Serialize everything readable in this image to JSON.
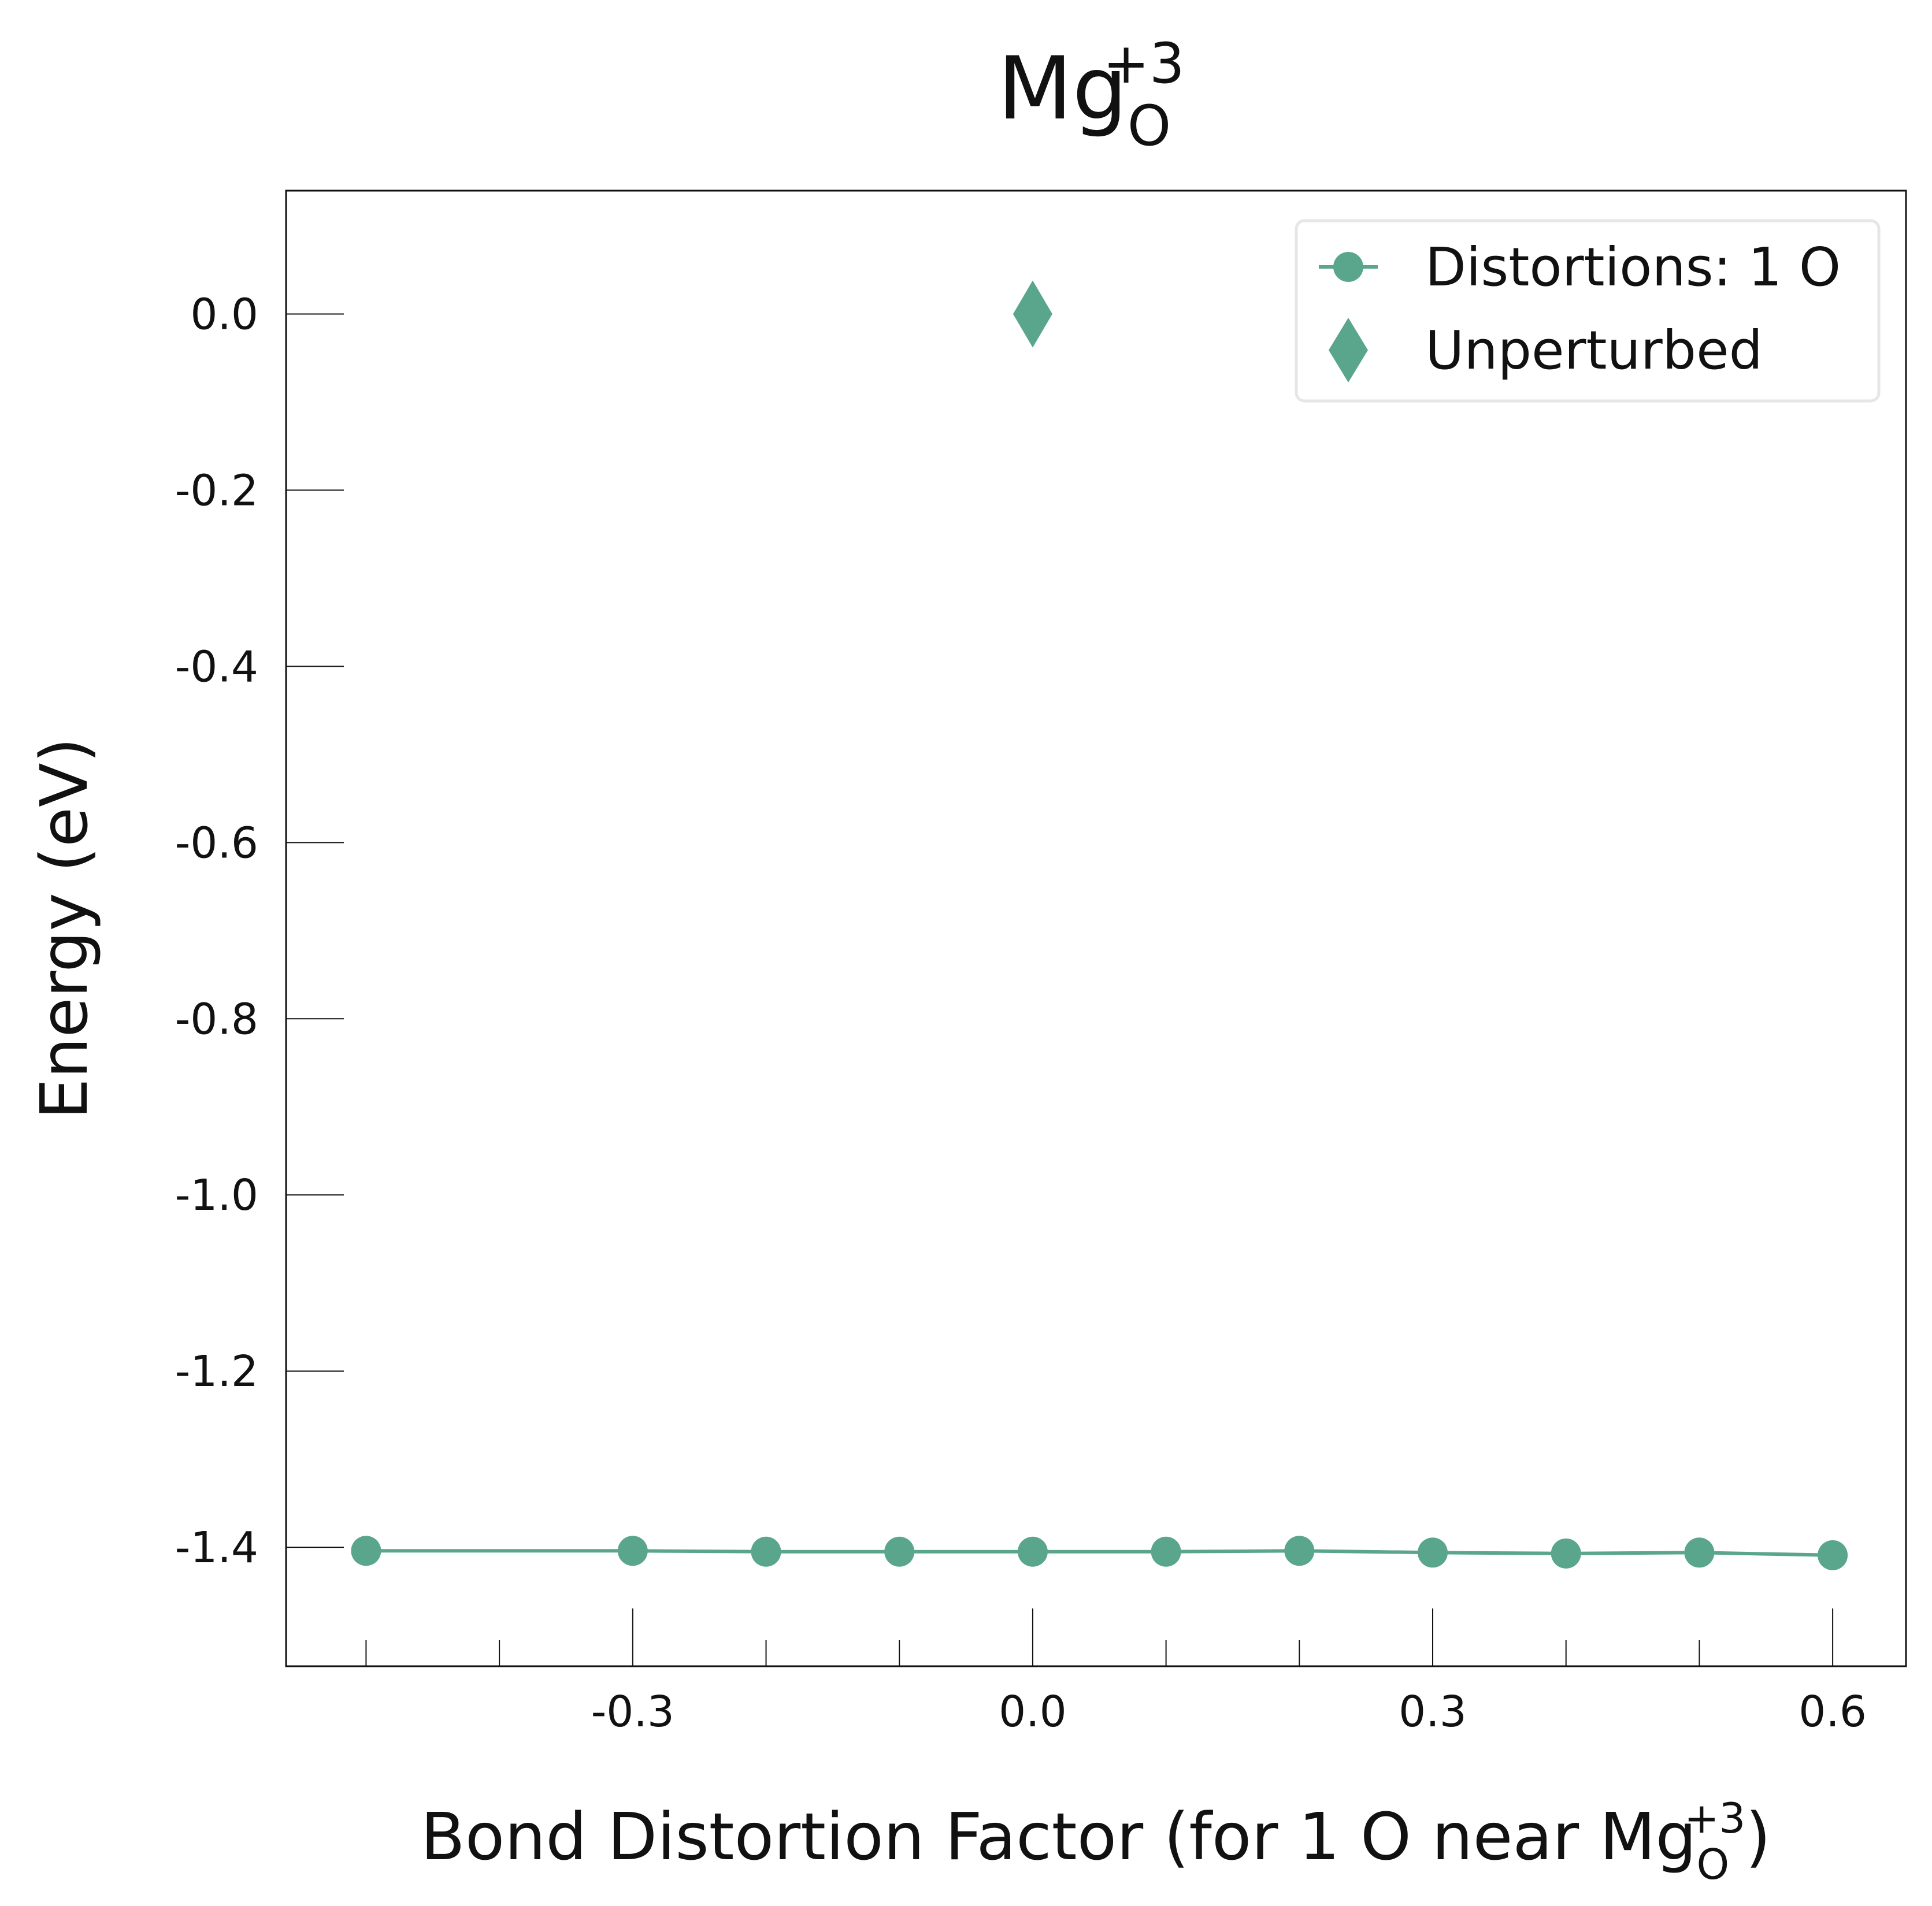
{
  "colors": {
    "series": "#5aa68c",
    "axis": "#111111",
    "legend_border": "#e6e6e6",
    "background": "#ffffff"
  },
  "chart_data": {
    "type": "line",
    "title": {
      "base": "Mg",
      "sub": "O",
      "sup": "+3"
    },
    "xlabel": {
      "prefix": "Bond Distortion Factor (for 1 O near Mg",
      "sub": "O",
      "sup": "+3",
      "suffix": ")"
    },
    "ylabel": "Energy (eV)",
    "xlim": [
      -0.56,
      0.655
    ],
    "ylim": [
      -1.535,
      0.14
    ],
    "xticks_major": [
      -0.3,
      0.0,
      0.3,
      0.6
    ],
    "xtick_labels": [
      "-0.3",
      "0.0",
      "0.3",
      "0.6"
    ],
    "xticks_minor": [
      -0.5,
      -0.4,
      -0.2,
      -0.1,
      0.1,
      0.2,
      0.4,
      0.5
    ],
    "yticks": [
      0.0,
      -0.2,
      -0.4,
      -0.6,
      -0.8,
      -1.0,
      -1.2,
      -1.4
    ],
    "ytick_labels": [
      "0.0",
      "-0.2",
      "-0.4",
      "-0.6",
      "-0.8",
      "-1.0",
      "-1.2",
      "-1.4"
    ],
    "grid": false,
    "legend_position": "top-right",
    "series": [
      {
        "name": "Distortions: 1 O",
        "marker": "circle",
        "line": true,
        "x": [
          -0.5,
          -0.3,
          -0.2,
          -0.1,
          0.0,
          0.1,
          0.2,
          0.3,
          0.4,
          0.5,
          0.6
        ],
        "y": [
          -1.404,
          -1.404,
          -1.405,
          -1.405,
          -1.405,
          -1.405,
          -1.404,
          -1.406,
          -1.407,
          -1.406,
          -1.409
        ]
      },
      {
        "name": "Unperturbed",
        "marker": "diamond",
        "line": false,
        "x": [
          0.0
        ],
        "y": [
          0.0
        ]
      }
    ]
  }
}
